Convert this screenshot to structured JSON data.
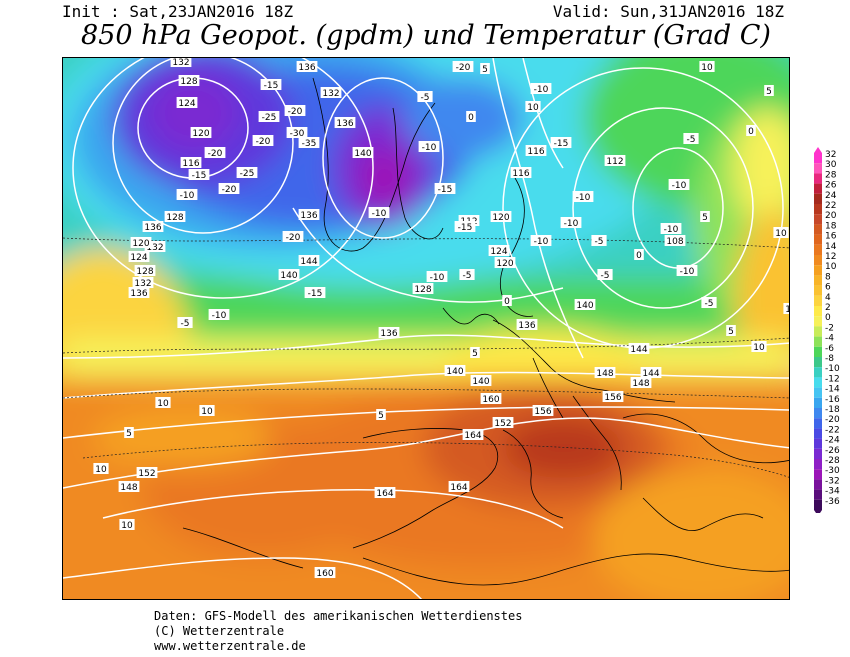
{
  "header": {
    "init": "Init : Sat,23JAN2016 18Z",
    "valid": "Valid: Sun,31JAN2016 18Z",
    "title": "850 hPa Geopot. (gpdm) und Temperatur (Grad C)"
  },
  "footer": {
    "line1": "Daten: GFS-Modell des amerikanischen Wetterdienstes",
    "line2": "(C) Wetterzentrale",
    "line3": "www.wetterzentrale.de"
  },
  "legend": {
    "levels": [
      "32",
      "30",
      "28",
      "26",
      "24",
      "22",
      "20",
      "18",
      "16",
      "14",
      "12",
      "10",
      "8",
      "6",
      "4",
      "2",
      "0",
      "-2",
      "-4",
      "-6",
      "-8",
      "-10",
      "-12",
      "-14",
      "-16",
      "-18",
      "-20",
      "-22",
      "-24",
      "-26",
      "-28",
      "-30",
      "-32",
      "-34",
      "-36"
    ],
    "colors": [
      "#ff33cc",
      "#ff55bb",
      "#e8287f",
      "#c01f3b",
      "#a52a1e",
      "#b8381f",
      "#c7482a",
      "#d45a22",
      "#e0661e",
      "#ea7820",
      "#f08a20",
      "#f5a020",
      "#f8b428",
      "#fac232",
      "#fcd440",
      "#feea4a",
      "#f6f15a",
      "#c8ec5a",
      "#8ee25a",
      "#4ed65a",
      "#3cc88a",
      "#3ad0c2",
      "#48dced",
      "#46c4f2",
      "#3aa6ef",
      "#3f88ef",
      "#3f66ea",
      "#4a4ae4",
      "#5e38dc",
      "#7a2ad2",
      "#8f20c6",
      "#9c16b8",
      "#7a129c",
      "#5a0e7c",
      "#3c0a5a"
    ]
  },
  "map": {
    "geopotential_labels": [
      "132",
      "128",
      "124",
      "120",
      "116",
      "136",
      "132",
      "136",
      "140",
      "136",
      "128",
      "136",
      "132",
      "116",
      "120",
      "112",
      "108",
      "120",
      "124",
      "128",
      "132",
      "136",
      "140",
      "144",
      "152",
      "156",
      "156",
      "148",
      "144",
      "140",
      "140",
      "160",
      "164",
      "164",
      "164",
      "160",
      "148",
      "152",
      "120",
      "124",
      "128",
      "136",
      "136",
      "140",
      "144",
      "148",
      "116",
      "112"
    ],
    "temperature_labels": [
      "-15",
      "-20",
      "-25",
      "-30",
      "-35",
      "-20",
      "-20",
      "-25",
      "-20",
      "-15",
      "-10",
      "-10",
      "-15",
      "-10",
      "-5",
      "0",
      "5",
      "10",
      "10",
      "10",
      "10",
      "5",
      "5",
      "-5",
      "-10",
      "-15",
      "-20",
      "-10",
      "-10",
      "-5",
      "0",
      "5",
      "10",
      "10",
      "10",
      "5",
      "-5",
      "-10",
      "-10",
      "-10",
      "-5",
      "0",
      "5",
      "10",
      "-20",
      "-15",
      "-10",
      "-5",
      "0",
      "5",
      "10",
      "-10",
      "-15",
      "-10",
      "-5"
    ]
  }
}
